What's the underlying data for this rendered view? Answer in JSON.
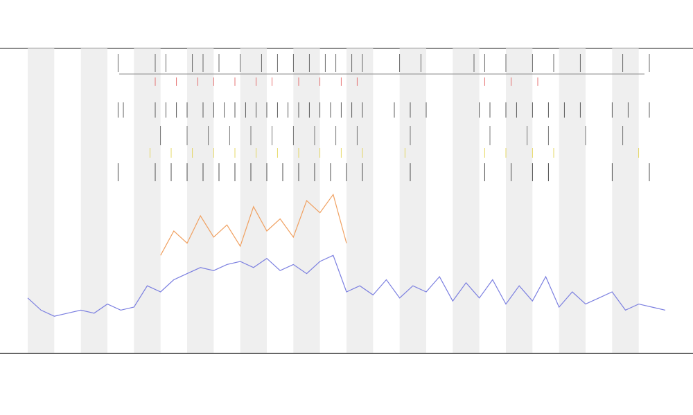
{
  "chart_data": {
    "type": "line",
    "xlim": [
      0,
      12
    ],
    "ylim": [
      0,
      100
    ],
    "x": [
      0,
      0.25,
      0.5,
      0.75,
      1,
      1.25,
      1.5,
      1.75,
      2,
      2.25,
      2.5,
      2.75,
      3,
      3.25,
      3.5,
      3.75,
      4,
      4.25,
      4.5,
      4.75,
      5,
      5.25,
      5.5,
      5.75,
      6,
      6.25,
      6.5,
      6.75,
      7,
      7.25,
      7.5,
      7.75,
      8,
      8.25,
      8.5,
      8.75,
      9,
      9.25,
      9.5,
      9.75,
      10,
      10.25,
      10.5,
      10.75,
      11,
      11.25,
      11.5,
      11.75,
      12
    ],
    "series": [
      {
        "color": "#7b7fe0",
        "values": [
          18,
          14,
          12,
          13,
          14,
          13,
          16,
          14,
          15,
          22,
          20,
          24,
          26,
          28,
          27,
          29,
          30,
          28,
          31,
          27,
          29,
          26,
          30,
          32,
          20,
          22,
          19,
          24,
          18,
          22,
          20,
          25,
          17,
          23,
          18,
          24,
          16,
          22,
          17,
          25,
          15,
          20,
          16,
          18,
          20,
          14,
          16,
          15,
          14
        ]
      },
      {
        "color": "#f0a060",
        "values": [
          null,
          null,
          null,
          null,
          null,
          null,
          null,
          null,
          null,
          null,
          32,
          40,
          36,
          45,
          38,
          42,
          35,
          48,
          40,
          44,
          38,
          50,
          46,
          52,
          36,
          null,
          null,
          null,
          null,
          null,
          null,
          null,
          null,
          null,
          null,
          null,
          null,
          null,
          null,
          null,
          null,
          null,
          null,
          null,
          null,
          null,
          null,
          null,
          null
        ]
      }
    ],
    "events": [
      {
        "color": "#444444",
        "x": [
          1.7,
          2.4,
          2.6,
          3.1,
          3.3,
          3.6,
          4.0,
          4.4,
          4.7,
          5.0,
          5.3,
          5.6,
          5.8,
          6.1,
          6.3,
          7.0,
          7.4,
          8.4,
          8.6,
          9.0,
          9.5,
          9.9,
          10.4,
          11.2,
          11.7
        ]
      },
      {
        "color": "#e05050",
        "x": [
          2.4,
          2.8,
          3.2,
          3.5,
          3.9,
          4.3,
          4.6,
          5.1,
          5.5,
          5.9,
          6.2,
          8.6,
          9.1,
          9.6
        ]
      },
      {
        "color": "#333333",
        "x": [
          1.7,
          1.8,
          2.4,
          2.6,
          2.8,
          3.0,
          3.3,
          3.5,
          3.7,
          3.9,
          4.1,
          4.3,
          4.5,
          4.7,
          4.9,
          5.1,
          5.3,
          5.5,
          5.7,
          5.9,
          6.1,
          6.3,
          6.9,
          7.2,
          7.5,
          8.5,
          8.7,
          9.0,
          9.2,
          9.5,
          9.8,
          10.1,
          10.4,
          11.0,
          11.3,
          11.7
        ]
      },
      {
        "color": "#555555",
        "x": [
          2.5,
          3.0,
          3.4,
          3.8,
          4.2,
          4.6,
          5.0,
          5.4,
          5.8,
          6.2,
          7.2,
          8.7,
          9.4,
          9.8,
          10.5,
          11.2
        ]
      },
      {
        "color": "#e0d040",
        "x": [
          2.3,
          2.7,
          3.1,
          3.5,
          3.9,
          4.3,
          4.7,
          5.1,
          5.5,
          5.9,
          6.3,
          7.1,
          8.6,
          9.0,
          9.5,
          9.9,
          11.5
        ]
      },
      {
        "color": "#222222",
        "x": [
          1.7,
          2.4,
          2.7,
          3.0,
          3.3,
          3.6,
          3.9,
          4.2,
          4.5,
          4.8,
          5.1,
          5.4,
          5.7,
          6.0,
          6.3,
          7.2,
          8.6,
          9.1,
          9.5,
          9.8,
          11.0,
          11.7
        ]
      }
    ]
  }
}
